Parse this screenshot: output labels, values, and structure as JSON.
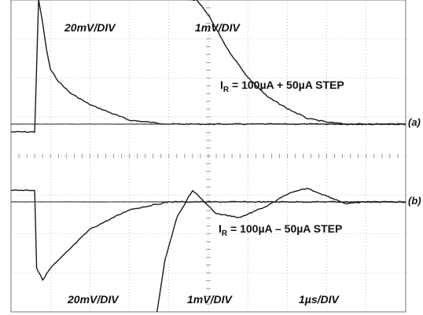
{
  "chart_data": [
    {
      "type": "line",
      "id": "a",
      "panel_label": "(a)",
      "annotation_main": "I",
      "annotation_sub": "R",
      "annotation_rest": " = 100µA + 50µA STEP",
      "scale_left": "20mV/DIV",
      "scale_right": "1mV/DIV",
      "grid": true,
      "series": [
        {
          "values": [
            [
              0,
              -0.2
            ],
            [
              0.6,
              -0.2
            ],
            [
              0.7,
              3.7
            ],
            [
              0.8,
              2.6
            ],
            [
              0.9,
              1.9
            ],
            [
              1.0,
              1.4
            ],
            [
              1.2,
              1.1
            ],
            [
              1.5,
              0.8
            ],
            [
              2,
              0.5
            ],
            [
              3,
              0.1
            ],
            [
              4,
              0.0
            ],
            [
              5,
              0.0
            ],
            [
              6,
              0.0
            ],
            [
              7,
              0.0
            ],
            [
              8,
              0.0
            ],
            [
              9,
              0.0
            ],
            [
              10,
              0.0
            ]
          ]
        },
        {
          "values": [
            [
              0,
              0.0
            ],
            [
              3.5,
              0.0
            ],
            [
              4,
              0.0
            ],
            [
              5,
              0.0
            ],
            [
              6,
              0.0
            ],
            [
              7,
              0.0
            ],
            [
              8,
              0.0
            ],
            [
              9,
              0.0
            ],
            [
              10,
              0.0
            ]
          ]
        },
        {
          "values": [
            [
              4.5,
              4.1
            ],
            [
              4.7,
              3.5
            ],
            [
              5.0,
              2.8
            ],
            [
              5.5,
              1.9
            ],
            [
              6,
              1.2
            ],
            [
              6.5,
              0.7
            ],
            [
              7,
              0.4
            ],
            [
              7.5,
              0.15
            ],
            [
              8,
              0.05
            ],
            [
              8.5,
              0.0
            ],
            [
              9,
              0.0
            ],
            [
              10,
              0.0
            ]
          ]
        }
      ]
    },
    {
      "type": "line",
      "id": "b",
      "panel_label": "(b)",
      "annotation_main": "I",
      "annotation_sub": "R",
      "annotation_rest": " = 100µA – 50µA STEP",
      "scale_left": "20mV/DIV",
      "scale_mid": "1mV/DIV",
      "scale_right": "1µs/DIV",
      "grid": true,
      "series": [
        {
          "values": [
            [
              0,
              0.3
            ],
            [
              0.6,
              0.3
            ],
            [
              0.65,
              -1.7
            ],
            [
              0.8,
              -2.0
            ],
            [
              1.0,
              -1.7
            ],
            [
              1.5,
              -1.2
            ],
            [
              2,
              -0.7
            ],
            [
              3,
              -0.2
            ],
            [
              4,
              0.0
            ],
            [
              5,
              0.0
            ],
            [
              6,
              0.0
            ],
            [
              7,
              0.0
            ],
            [
              8,
              0.0
            ],
            [
              9,
              0.0
            ],
            [
              10,
              0.0
            ]
          ]
        },
        {
          "values": [
            [
              0,
              0.0
            ],
            [
              10,
              0.0
            ]
          ]
        },
        {
          "values": [
            [
              3.7,
              -3.3
            ],
            [
              3.9,
              -1.5
            ],
            [
              4.2,
              -0.4
            ],
            [
              4.6,
              0.3
            ],
            [
              5.2,
              -0.3
            ],
            [
              5.8,
              -0.4
            ],
            [
              6.5,
              -0.1
            ],
            [
              7,
              0.2
            ],
            [
              7.5,
              0.35
            ],
            [
              8,
              0.15
            ],
            [
              8.5,
              -0.05
            ],
            [
              9,
              0.0
            ],
            [
              10,
              0.0
            ]
          ]
        }
      ]
    }
  ]
}
